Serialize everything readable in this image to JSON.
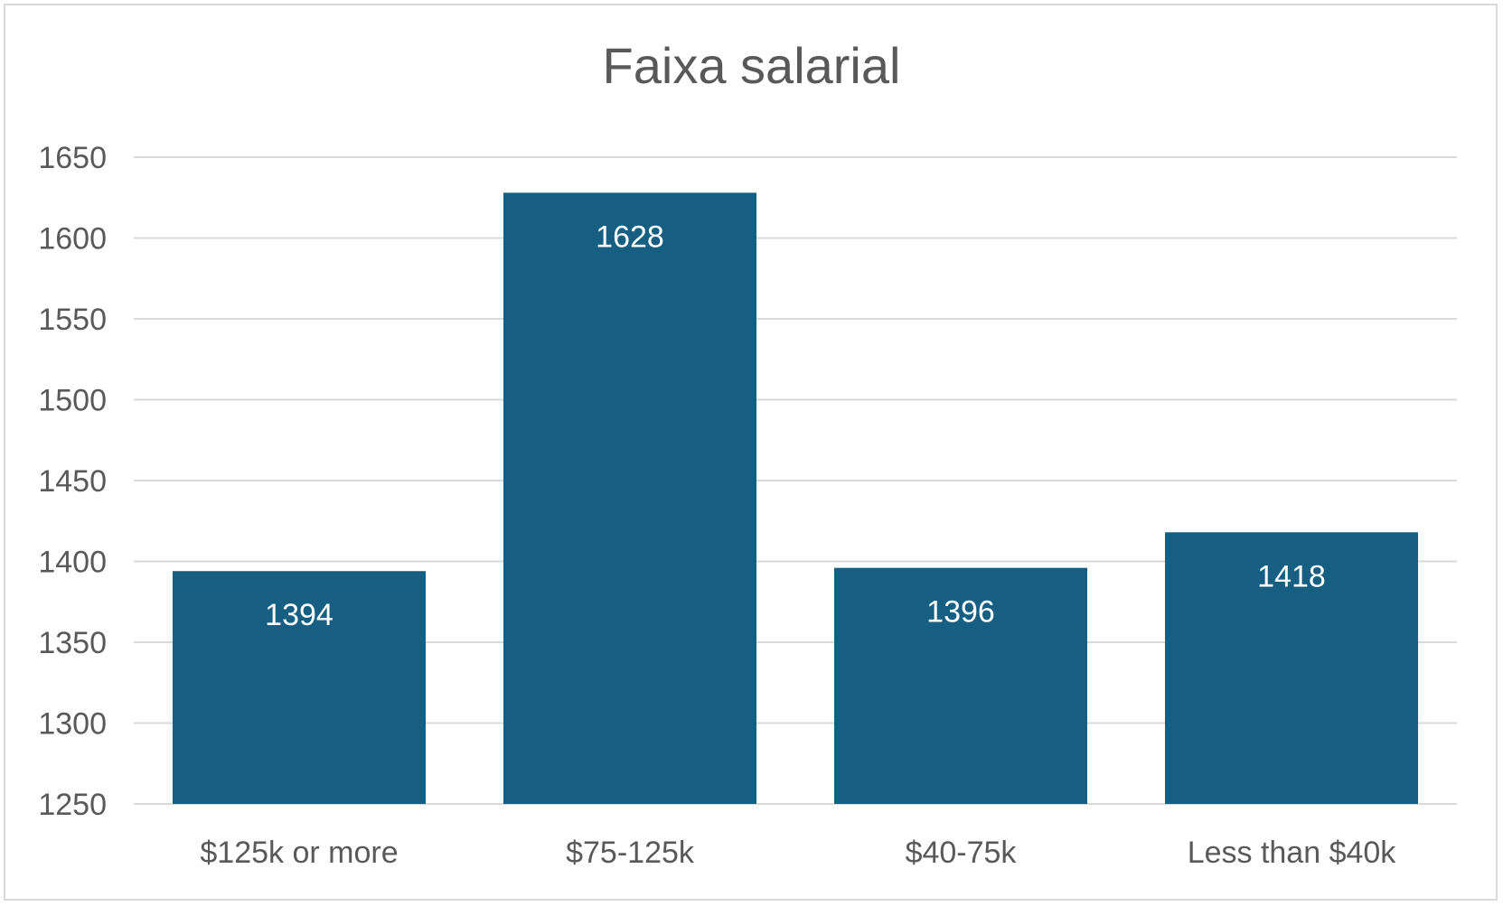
{
  "chart_data": {
    "type": "bar",
    "title": "Faixa salarial",
    "xlabel": "",
    "ylabel": "",
    "categories": [
      "$125k or more",
      "$75-125k",
      "$40-75k",
      "Less than $40k"
    ],
    "values": [
      1394,
      1628,
      1396,
      1418
    ],
    "data_labels": [
      "1394",
      "1628",
      "1396",
      "1418"
    ],
    "ylim": [
      1250,
      1650
    ],
    "y_ticks": [
      1250,
      1300,
      1350,
      1400,
      1450,
      1500,
      1550,
      1600,
      1650
    ],
    "y_tick_labels": [
      "1250",
      "1300",
      "1350",
      "1400",
      "1450",
      "1500",
      "1550",
      "1600",
      "1650"
    ],
    "grid": true,
    "legend": "none",
    "bar_color": "#175F82",
    "grid_color": "#d9d9d9",
    "text_color": "#595959"
  }
}
